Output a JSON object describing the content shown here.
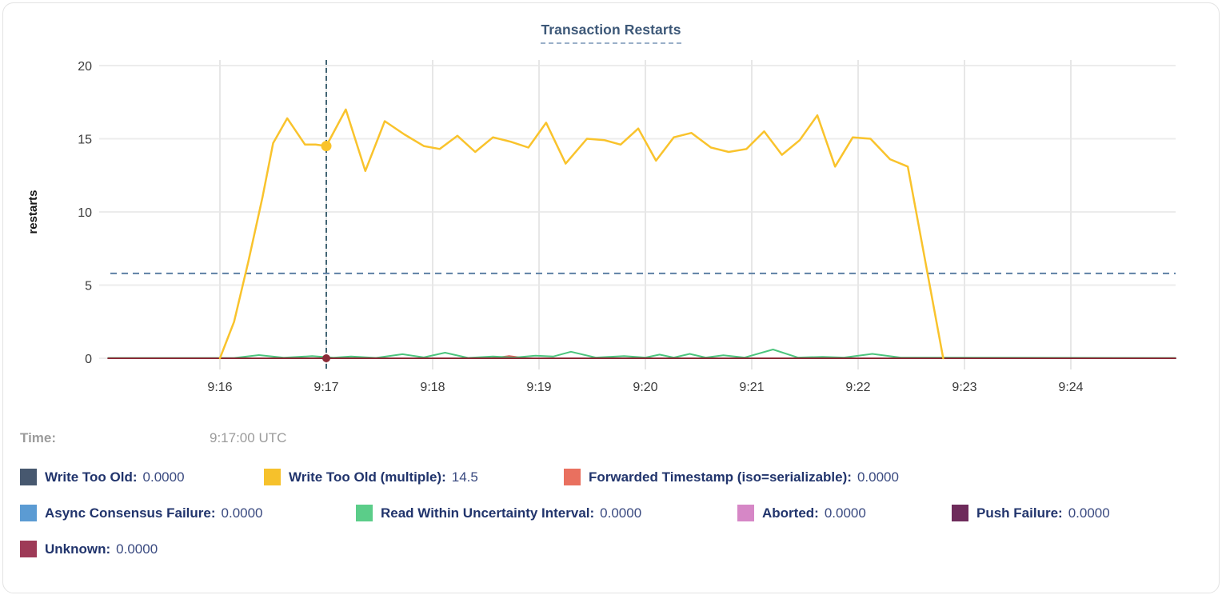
{
  "title": "Transaction Restarts",
  "tooltip": {
    "time_label": "Time:",
    "time_value": "9:17:00 UTC"
  },
  "legend": {
    "rows": [
      {
        "items": [
          {
            "label": "Write Too Old:",
            "value": "0.0000",
            "color": "#47586F"
          },
          {
            "label": "Write Too Old (multiple):",
            "value": "14.5",
            "color": "#F6C12B"
          },
          {
            "label": "Forwarded Timestamp (iso=serializable):",
            "value": "0.0000",
            "color": "#E9705F"
          }
        ]
      },
      {
        "items": [
          {
            "label": "Async Consensus Failure:",
            "value": "0.0000",
            "color": "#5B9BD3"
          },
          {
            "label": "Read Within Uncertainty Interval:",
            "value": "0.0000",
            "color": "#5BCD89"
          },
          {
            "label": "Aborted:",
            "value": "0.0000",
            "color": "#D687C6"
          },
          {
            "label": "Push Failure:",
            "value": "0.0000",
            "color": "#6E2B5B"
          }
        ]
      },
      {
        "items": [
          {
            "label": "Unknown:",
            "value": "0.0000",
            "color": "#9E3A57"
          }
        ]
      }
    ]
  },
  "chart_data": {
    "type": "line",
    "title": "Transaction Restarts",
    "xlabel": "",
    "ylabel": "restarts",
    "ylim": [
      0,
      20
    ],
    "yticks": [
      0,
      5,
      10,
      15,
      20
    ],
    "xticks": [
      "9:16",
      "9:17",
      "9:18",
      "9:19",
      "9:20",
      "9:21",
      "9:22",
      "9:23",
      "9:24"
    ],
    "x_domain": [
      "9:14:57",
      "9:24:59"
    ],
    "grid": true,
    "legend_position": "bottom",
    "crosshair": {
      "time": "9:17:00",
      "threshold_value": 5.8
    },
    "series": [
      {
        "name": "Write Too Old",
        "color": "#47586F",
        "constant": 0
      },
      {
        "name": "Async Consensus Failure",
        "color": "#5B9BD3",
        "constant": 0
      },
      {
        "name": "Aborted",
        "color": "#D687C6",
        "constant": 0
      },
      {
        "name": "Push Failure",
        "color": "#6E2B5B",
        "constant": 0
      },
      {
        "name": "Forwarded Timestamp (iso=serializable)",
        "color": "#E25050",
        "points": [
          [
            "9:14:57",
            0
          ],
          [
            "9:18:33",
            0
          ],
          [
            "9:18:43",
            0.15
          ],
          [
            "9:18:53",
            0
          ],
          [
            "9:24:59",
            0
          ]
        ]
      },
      {
        "name": "Read Within Uncertainty Interval",
        "color": "#4CC47D",
        "points": [
          [
            "9:14:57",
            0.02
          ],
          [
            "9:16:08",
            0.02
          ],
          [
            "9:16:22",
            0.22
          ],
          [
            "9:16:36",
            0.04
          ],
          [
            "9:16:52",
            0.15
          ],
          [
            "9:17:04",
            0.04
          ],
          [
            "9:17:14",
            0.12
          ],
          [
            "9:17:28",
            0.03
          ],
          [
            "9:17:43",
            0.28
          ],
          [
            "9:17:55",
            0.06
          ],
          [
            "9:18:07",
            0.38
          ],
          [
            "9:18:20",
            0.03
          ],
          [
            "9:18:34",
            0.12
          ],
          [
            "9:18:46",
            0.05
          ],
          [
            "9:18:58",
            0.18
          ],
          [
            "9:19:08",
            0.12
          ],
          [
            "9:19:18",
            0.45
          ],
          [
            "9:19:32",
            0.05
          ],
          [
            "9:19:48",
            0.15
          ],
          [
            "9:20:00",
            0.05
          ],
          [
            "9:20:08",
            0.25
          ],
          [
            "9:20:16",
            0.05
          ],
          [
            "9:20:25",
            0.3
          ],
          [
            "9:20:34",
            0.05
          ],
          [
            "9:20:44",
            0.2
          ],
          [
            "9:20:56",
            0.05
          ],
          [
            "9:21:12",
            0.6
          ],
          [
            "9:21:26",
            0.05
          ],
          [
            "9:21:40",
            0.1
          ],
          [
            "9:21:52",
            0.05
          ],
          [
            "9:22:08",
            0.3
          ],
          [
            "9:22:24",
            0.05
          ],
          [
            "9:24:59",
            0.02
          ]
        ]
      },
      {
        "name": "Unknown",
        "color": "#8C2B38",
        "points": [
          [
            "9:14:57",
            0
          ],
          [
            "9:24:59",
            0
          ]
        ]
      },
      {
        "name": "Write Too Old (multiple)",
        "color": "#F9C32C",
        "points": [
          [
            "9:16:00",
            0
          ],
          [
            "9:16:08",
            2.5
          ],
          [
            "9:16:16",
            6.6
          ],
          [
            "9:16:24",
            11
          ],
          [
            "9:16:30",
            14.7
          ],
          [
            "9:16:38",
            16.4
          ],
          [
            "9:16:48",
            14.6
          ],
          [
            "9:16:54",
            14.6
          ],
          [
            "9:17:00",
            14.5
          ],
          [
            "9:17:11",
            17
          ],
          [
            "9:17:22",
            12.8
          ],
          [
            "9:17:33",
            16.2
          ],
          [
            "9:17:44",
            15.3
          ],
          [
            "9:17:55",
            14.5
          ],
          [
            "9:18:04",
            14.3
          ],
          [
            "9:18:14",
            15.2
          ],
          [
            "9:18:24",
            14.1
          ],
          [
            "9:18:34",
            15.1
          ],
          [
            "9:18:44",
            14.8
          ],
          [
            "9:18:54",
            14.4
          ],
          [
            "9:19:04",
            16.1
          ],
          [
            "9:19:15",
            13.3
          ],
          [
            "9:19:27",
            15
          ],
          [
            "9:19:37",
            14.9
          ],
          [
            "9:19:46",
            14.6
          ],
          [
            "9:19:56",
            15.7
          ],
          [
            "9:20:06",
            13.5
          ],
          [
            "9:20:16",
            15.1
          ],
          [
            "9:20:26",
            15.4
          ],
          [
            "9:20:37",
            14.4
          ],
          [
            "9:20:47",
            14.1
          ],
          [
            "9:20:57",
            14.3
          ],
          [
            "9:21:07",
            15.5
          ],
          [
            "9:21:17",
            13.9
          ],
          [
            "9:21:27",
            14.9
          ],
          [
            "9:21:37",
            16.6
          ],
          [
            "9:21:47",
            13.1
          ],
          [
            "9:21:57",
            15.1
          ],
          [
            "9:22:07",
            15
          ],
          [
            "9:22:18",
            13.6
          ],
          [
            "9:22:28",
            13.1
          ],
          [
            "9:22:48",
            0
          ]
        ]
      }
    ],
    "highlight_points": [
      {
        "time": "9:17:00",
        "value": 14.5,
        "color": "#F9C32C",
        "radius": 6.5
      },
      {
        "time": "9:17:00",
        "value": 0,
        "color": "#8C2B38",
        "radius": 5
      }
    ]
  }
}
